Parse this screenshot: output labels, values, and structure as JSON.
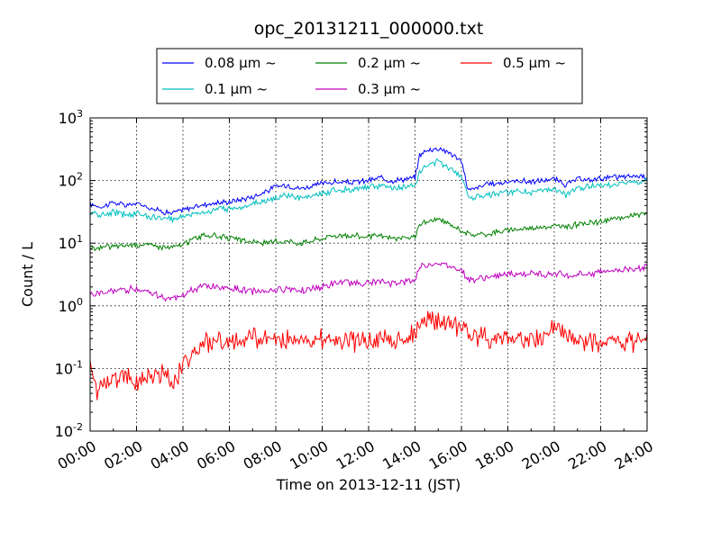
{
  "chart_data": {
    "type": "line",
    "title": "opc_20131211_000000.txt",
    "xlabel": "Time on 2013-12-11 (JST)",
    "ylabel": "Count / L",
    "y_scale": "log",
    "ylim": [
      0.01,
      1000
    ],
    "xlim": [
      "00:00",
      "24:00"
    ],
    "x_unit": "hours",
    "x_ticks": [
      "00:00",
      "02:00",
      "04:00",
      "06:00",
      "08:00",
      "10:00",
      "12:00",
      "14:00",
      "16:00",
      "18:00",
      "20:00",
      "22:00",
      "24:00"
    ],
    "y_ticks": [
      {
        "base": "10",
        "exp": "-2"
      },
      {
        "base": "10",
        "exp": "-1"
      },
      {
        "base": "10",
        "exp": "0"
      },
      {
        "base": "10",
        "exp": "1"
      },
      {
        "base": "10",
        "exp": "2"
      },
      {
        "base": "10",
        "exp": "3"
      }
    ],
    "grid": true,
    "legend_position": "top-center",
    "series": [
      {
        "name": "0.08 μm ~",
        "color": "#0000ff",
        "x": [
          0,
          0.5,
          1,
          1.5,
          2,
          2.5,
          3,
          3.5,
          4,
          4.5,
          5,
          5.5,
          6,
          6.5,
          7,
          7.5,
          8,
          8.5,
          9,
          9.5,
          10,
          10.5,
          11,
          11.5,
          12,
          12.5,
          13,
          13.5,
          14,
          14.2,
          14.5,
          15,
          15.5,
          16,
          16.3,
          16.6,
          17,
          17.5,
          18,
          18.5,
          19,
          19.5,
          20,
          20.5,
          21,
          21.5,
          22,
          22.5,
          23,
          23.5,
          24
        ],
        "y": [
          42,
          38,
          45,
          40,
          43,
          38,
          33,
          30,
          34,
          38,
          42,
          44,
          46,
          50,
          55,
          65,
          80,
          85,
          75,
          80,
          90,
          95,
          92,
          95,
          100,
          110,
          100,
          105,
          110,
          260,
          300,
          330,
          280,
          200,
          70,
          75,
          85,
          90,
          95,
          100,
          95,
          100,
          105,
          85,
          105,
          100,
          110,
          112,
          115,
          118,
          118
        ]
      },
      {
        "name": "0.1 μm ~",
        "color": "#00bfbf",
        "x": [
          0,
          0.5,
          1,
          1.5,
          2,
          2.5,
          3,
          3.5,
          4,
          4.5,
          5,
          5.5,
          6,
          6.5,
          7,
          7.5,
          8,
          8.5,
          9,
          9.5,
          10,
          10.5,
          11,
          11.5,
          12,
          12.5,
          13,
          13.5,
          14,
          14.2,
          14.5,
          15,
          15.5,
          16,
          16.3,
          16.6,
          17,
          17.5,
          18,
          18.5,
          19,
          19.5,
          20,
          20.5,
          21,
          21.5,
          22,
          22.5,
          23,
          23.5,
          24
        ],
        "y": [
          30,
          28,
          31,
          29,
          30,
          27,
          25,
          24,
          27,
          30,
          32,
          34,
          36,
          38,
          42,
          48,
          52,
          58,
          52,
          55,
          62,
          70,
          72,
          75,
          80,
          82,
          75,
          78,
          85,
          140,
          170,
          200,
          160,
          120,
          55,
          55,
          60,
          62,
          65,
          68,
          65,
          68,
          72,
          58,
          75,
          80,
          85,
          88,
          90,
          95,
          98
        ]
      },
      {
        "name": "0.2 μm ~",
        "color": "#008000",
        "x": [
          0,
          0.5,
          1,
          1.5,
          2,
          2.5,
          3,
          3.5,
          4,
          4.5,
          5,
          5.5,
          6,
          6.5,
          7,
          7.5,
          8,
          8.5,
          9,
          9.5,
          10,
          10.5,
          11,
          11.5,
          12,
          12.5,
          13,
          13.5,
          14,
          14.2,
          14.5,
          15,
          15.5,
          16,
          16.3,
          16.6,
          17,
          17.5,
          18,
          18.5,
          19,
          19.5,
          20,
          20.5,
          21,
          21.5,
          22,
          22.5,
          23,
          23.5,
          24
        ],
        "y": [
          8,
          8.5,
          9,
          9.2,
          9.5,
          9.5,
          8.8,
          8.5,
          9.5,
          12,
          13.5,
          13,
          12,
          11,
          10.5,
          10,
          10.5,
          11,
          10,
          11,
          12,
          13.5,
          13,
          13.2,
          12.5,
          13,
          12,
          12,
          12.5,
          20,
          22,
          24,
          20,
          16,
          14,
          13.5,
          14,
          15,
          16,
          17,
          17.5,
          18,
          19,
          18,
          20,
          21,
          22,
          24,
          26,
          28,
          30
        ]
      },
      {
        "name": "0.3 μm ~",
        "color": "#bf00bf",
        "x": [
          0,
          0.5,
          1,
          1.5,
          2,
          2.5,
          3,
          3.5,
          4,
          4.5,
          5,
          5.5,
          6,
          6.5,
          7,
          7.5,
          8,
          8.5,
          9,
          9.5,
          10,
          10.5,
          11,
          11.5,
          12,
          12.5,
          13,
          13.5,
          14,
          14.2,
          14.5,
          15,
          15.5,
          16,
          16.3,
          16.6,
          17,
          17.5,
          18,
          18.5,
          19,
          19.5,
          20,
          20.5,
          21,
          21.5,
          22,
          22.5,
          23,
          23.5,
          24
        ],
        "y": [
          1.5,
          1.6,
          1.7,
          1.8,
          1.9,
          1.7,
          1.4,
          1.3,
          1.5,
          1.8,
          2.1,
          2.0,
          1.9,
          1.8,
          1.7,
          1.75,
          1.8,
          1.9,
          1.8,
          1.85,
          2.0,
          2.2,
          2.4,
          2.3,
          2.3,
          2.4,
          2.3,
          2.4,
          2.6,
          4.2,
          4.5,
          4.8,
          4.3,
          3.8,
          2.7,
          2.6,
          2.8,
          3.0,
          3.1,
          3.2,
          3.3,
          3.2,
          3.3,
          3.0,
          3.1,
          3.3,
          3.5,
          3.7,
          3.8,
          4.0,
          4.3
        ]
      },
      {
        "name": "0.5 μm ~",
        "color": "#ff0000",
        "x": [
          0,
          0.3,
          0.6,
          1,
          1.5,
          2,
          2.5,
          3,
          3.3,
          3.6,
          4,
          4.3,
          4.6,
          5,
          5.5,
          6,
          6.5,
          7,
          7.5,
          8,
          8.5,
          9,
          9.5,
          10,
          10.5,
          11,
          11.5,
          12,
          12.5,
          13,
          13.5,
          14,
          14.2,
          14.5,
          15,
          15.5,
          16,
          16.5,
          17,
          17.5,
          18,
          18.5,
          19,
          19.5,
          20,
          20.5,
          21,
          21.5,
          22,
          22.5,
          23,
          23.5,
          24
        ],
        "y": [
          0.1,
          0.045,
          0.07,
          0.06,
          0.08,
          0.065,
          0.07,
          0.08,
          0.09,
          0.05,
          0.13,
          0.16,
          0.2,
          0.24,
          0.26,
          0.28,
          0.27,
          0.3,
          0.31,
          0.28,
          0.3,
          0.32,
          0.29,
          0.3,
          0.27,
          0.31,
          0.26,
          0.29,
          0.3,
          0.28,
          0.27,
          0.36,
          0.55,
          0.6,
          0.55,
          0.5,
          0.45,
          0.34,
          0.32,
          0.3,
          0.3,
          0.28,
          0.3,
          0.32,
          0.45,
          0.34,
          0.28,
          0.26,
          0.24,
          0.25,
          0.26,
          0.27,
          0.28
        ]
      }
    ]
  }
}
